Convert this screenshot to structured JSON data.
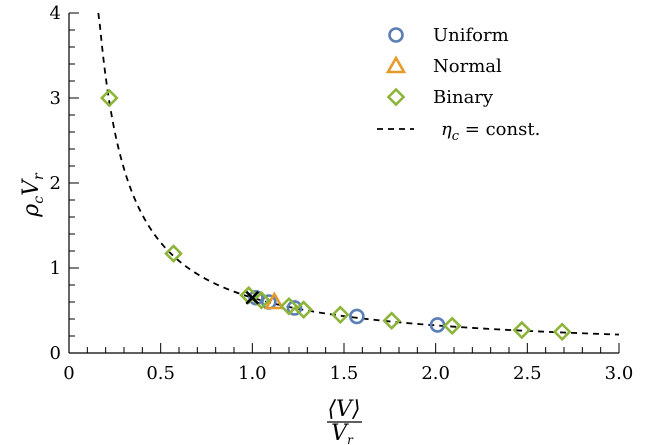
{
  "chart_data": {
    "type": "scatter",
    "xlabel": {
      "numerator": "⟨V⟩",
      "denominator": "V",
      "denominator_sub": "r"
    },
    "ylabel": {
      "main": "ρ",
      "sub1": "c",
      "mid": "V",
      "sub2": "r"
    },
    "xlim": [
      0,
      3.0
    ],
    "ylim": [
      0,
      4
    ],
    "x_ticks": [
      0,
      0.5,
      1.0,
      1.5,
      2.0,
      2.5,
      3.0
    ],
    "x_tick_labels": [
      "0",
      "0.5",
      "1.0",
      "1.5",
      "2.0",
      "2.5",
      "3.0"
    ],
    "y_ticks": [
      0,
      1,
      2,
      3,
      4
    ],
    "y_tick_labels": [
      "0",
      "1",
      "2",
      "3",
      "4"
    ],
    "grid": false,
    "legend_position": "top-right",
    "series": [
      {
        "name": "Uniform",
        "marker": "circle",
        "color": "#5b7fb5",
        "points": [
          [
            1.02,
            0.65
          ],
          [
            1.09,
            0.6
          ],
          [
            1.23,
            0.53
          ],
          [
            1.57,
            0.43
          ],
          [
            2.01,
            0.33
          ]
        ]
      },
      {
        "name": "Normal",
        "marker": "triangle",
        "color": "#e59a2b",
        "points": [
          [
            1.12,
            0.6
          ]
        ]
      },
      {
        "name": "Binary",
        "marker": "diamond",
        "color": "#8db53a",
        "points": [
          [
            0.22,
            3.0
          ],
          [
            0.57,
            1.17
          ],
          [
            0.98,
            0.68
          ],
          [
            1.05,
            0.62
          ],
          [
            1.2,
            0.55
          ],
          [
            1.28,
            0.51
          ],
          [
            1.48,
            0.45
          ],
          [
            1.76,
            0.38
          ],
          [
            2.09,
            0.32
          ],
          [
            2.47,
            0.27
          ],
          [
            2.69,
            0.25
          ]
        ]
      }
    ],
    "curve": {
      "name": "η_c = const.",
      "label_main": "η",
      "label_sub": "c",
      "label_rest": " = const.",
      "style": "dashed",
      "color": "#000000",
      "constant": 0.65,
      "x_start": 0.16
    },
    "annotations": [
      {
        "marker": "cross",
        "x": 1.0,
        "y": 0.65,
        "color": "#000000"
      }
    ]
  }
}
